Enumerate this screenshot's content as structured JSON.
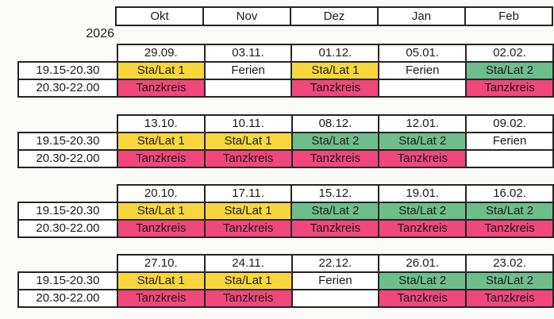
{
  "year": "2026",
  "months": [
    "Okt",
    "Nov",
    "Dez",
    "Jan",
    "Feb"
  ],
  "time_slots": [
    "19.15-20.30",
    "20.30-22.00"
  ],
  "colors": {
    "yellow": "#F9D73C",
    "green": "#6EBE8C",
    "pink": "#F0477D"
  },
  "blocks": [
    {
      "dates": [
        "29.09.",
        "03.11.",
        "01.12.",
        "05.01.",
        "02.02."
      ],
      "rows": [
        {
          "slot": "19.15-20.30",
          "cells": [
            {
              "label": "Sta/Lat 1",
              "color": "yellow"
            },
            {
              "label": "Ferien",
              "color": null
            },
            {
              "label": "Sta/Lat 1",
              "color": "yellow"
            },
            {
              "label": "Ferien",
              "color": null
            },
            {
              "label": "Sta/Lat 2",
              "color": "green"
            }
          ]
        },
        {
          "slot": "20.30-22.00",
          "cells": [
            {
              "label": "Tanzkreis",
              "color": "pink"
            },
            {
              "label": "",
              "color": null
            },
            {
              "label": "Tanzkreis",
              "color": "pink"
            },
            {
              "label": "",
              "color": null
            },
            {
              "label": "Tanzkreis",
              "color": "pink"
            }
          ]
        }
      ]
    },
    {
      "dates": [
        "13.10.",
        "10.11.",
        "08.12.",
        "12.01.",
        "09.02."
      ],
      "rows": [
        {
          "slot": "19.15-20.30",
          "cells": [
            {
              "label": "Sta/Lat 1",
              "color": "yellow"
            },
            {
              "label": "Sta/Lat 1",
              "color": "yellow"
            },
            {
              "label": "Sta/Lat 2",
              "color": "green"
            },
            {
              "label": "Sta/Lat 2",
              "color": "green"
            },
            {
              "label": "Ferien",
              "color": null
            }
          ]
        },
        {
          "slot": "20.30-22.00",
          "cells": [
            {
              "label": "Tanzkreis",
              "color": "pink"
            },
            {
              "label": "Tanzkreis",
              "color": "pink"
            },
            {
              "label": "Tanzkreis",
              "color": "pink"
            },
            {
              "label": "Tanzkreis",
              "color": "pink"
            },
            {
              "label": "",
              "color": null
            }
          ]
        }
      ]
    },
    {
      "dates": [
        "20.10.",
        "17.11.",
        "15.12.",
        "19.01.",
        "16.02."
      ],
      "rows": [
        {
          "slot": "19.15-20.30",
          "cells": [
            {
              "label": "Sta/Lat 1",
              "color": "yellow"
            },
            {
              "label": "Sta/Lat 1",
              "color": "yellow"
            },
            {
              "label": "Sta/Lat 2",
              "color": "green"
            },
            {
              "label": "Sta/Lat 2",
              "color": "green"
            },
            {
              "label": "Sta/Lat 2",
              "color": "green"
            }
          ]
        },
        {
          "slot": "20.30-22.00",
          "cells": [
            {
              "label": "Tanzkreis",
              "color": "pink"
            },
            {
              "label": "Tanzkreis",
              "color": "pink"
            },
            {
              "label": "Tanzkreis",
              "color": "pink"
            },
            {
              "label": "Tanzkreis",
              "color": "pink"
            },
            {
              "label": "Tanzkreis",
              "color": "pink"
            }
          ]
        }
      ]
    },
    {
      "dates": [
        "27.10.",
        "24.11.",
        "22.12.",
        "26.01.",
        "23.02."
      ],
      "rows": [
        {
          "slot": "19.15-20.30",
          "cells": [
            {
              "label": "Sta/Lat 1",
              "color": "yellow"
            },
            {
              "label": "Sta/Lat 1",
              "color": "yellow"
            },
            {
              "label": "Ferien",
              "color": null
            },
            {
              "label": "Sta/Lat 2",
              "color": "green"
            },
            {
              "label": "Sta/Lat 2",
              "color": "green"
            }
          ]
        },
        {
          "slot": "20.30-22.00",
          "cells": [
            {
              "label": "Tanzkreis",
              "color": "pink"
            },
            {
              "label": "Tanzkreis",
              "color": "pink"
            },
            {
              "label": "",
              "color": null
            },
            {
              "label": "Tanzkreis",
              "color": "pink"
            },
            {
              "label": "Tanzkreis",
              "color": "pink"
            }
          ]
        }
      ]
    }
  ]
}
